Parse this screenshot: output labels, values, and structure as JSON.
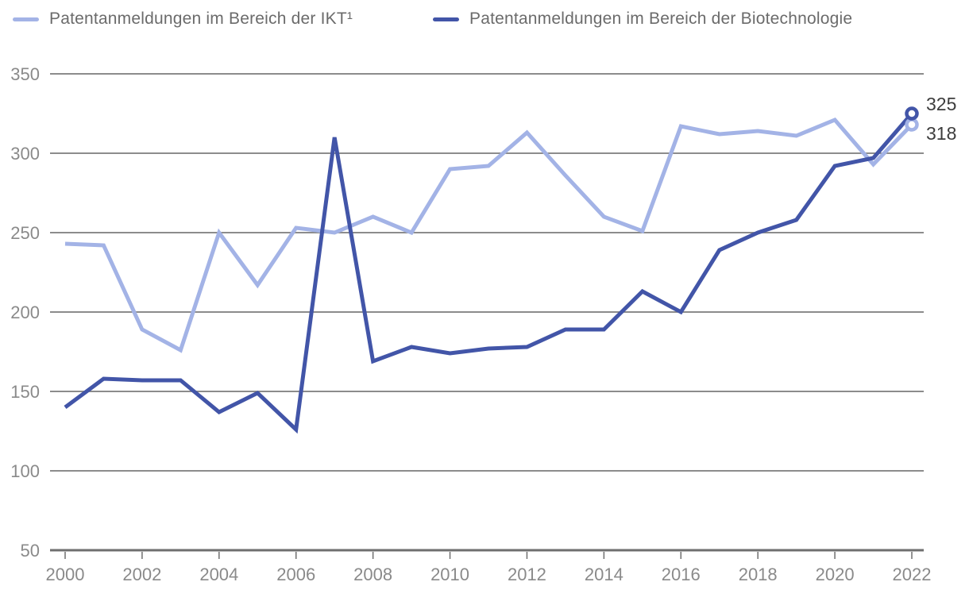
{
  "chart_data": {
    "type": "line",
    "title": "",
    "xlabel": "",
    "ylabel": "",
    "x": [
      2000,
      2001,
      2002,
      2003,
      2004,
      2005,
      2006,
      2007,
      2008,
      2009,
      2010,
      2011,
      2012,
      2013,
      2014,
      2015,
      2016,
      2017,
      2018,
      2019,
      2020,
      2021,
      2022
    ],
    "xticks": [
      2000,
      2002,
      2004,
      2006,
      2008,
      2010,
      2012,
      2014,
      2016,
      2018,
      2020,
      2022
    ],
    "yticks": [
      350,
      300,
      250,
      200,
      150,
      100,
      50
    ],
    "ylim": [
      50,
      350
    ],
    "xlim": [
      2000,
      2022
    ],
    "grid": "horizontal",
    "legend_position": "top",
    "colors": {
      "grid": "#7c7c7c",
      "axis": "#6f6f6f",
      "tick_label": "#8a8a8a",
      "value_label": "#3d3d3d"
    },
    "series": [
      {
        "id": "ikt",
        "name": "Patentanmeldungen im Bereich der IKT¹",
        "color": "#a3b3e6",
        "values": [
          243,
          242,
          189,
          176,
          250,
          217,
          253,
          250,
          260,
          250,
          290,
          292,
          313,
          286,
          260,
          251,
          317,
          312,
          314,
          311,
          321,
          293,
          318
        ],
        "end_label": "318"
      },
      {
        "id": "biotech",
        "name": "Patentanmeldungen im Bereich der Biotechnologie",
        "color": "#4255a8",
        "values": [
          140,
          158,
          157,
          157,
          137,
          149,
          126,
          310,
          169,
          178,
          174,
          177,
          178,
          189,
          189,
          213,
          200,
          239,
          250,
          258,
          292,
          297,
          325
        ],
        "end_label": "325"
      }
    ]
  }
}
